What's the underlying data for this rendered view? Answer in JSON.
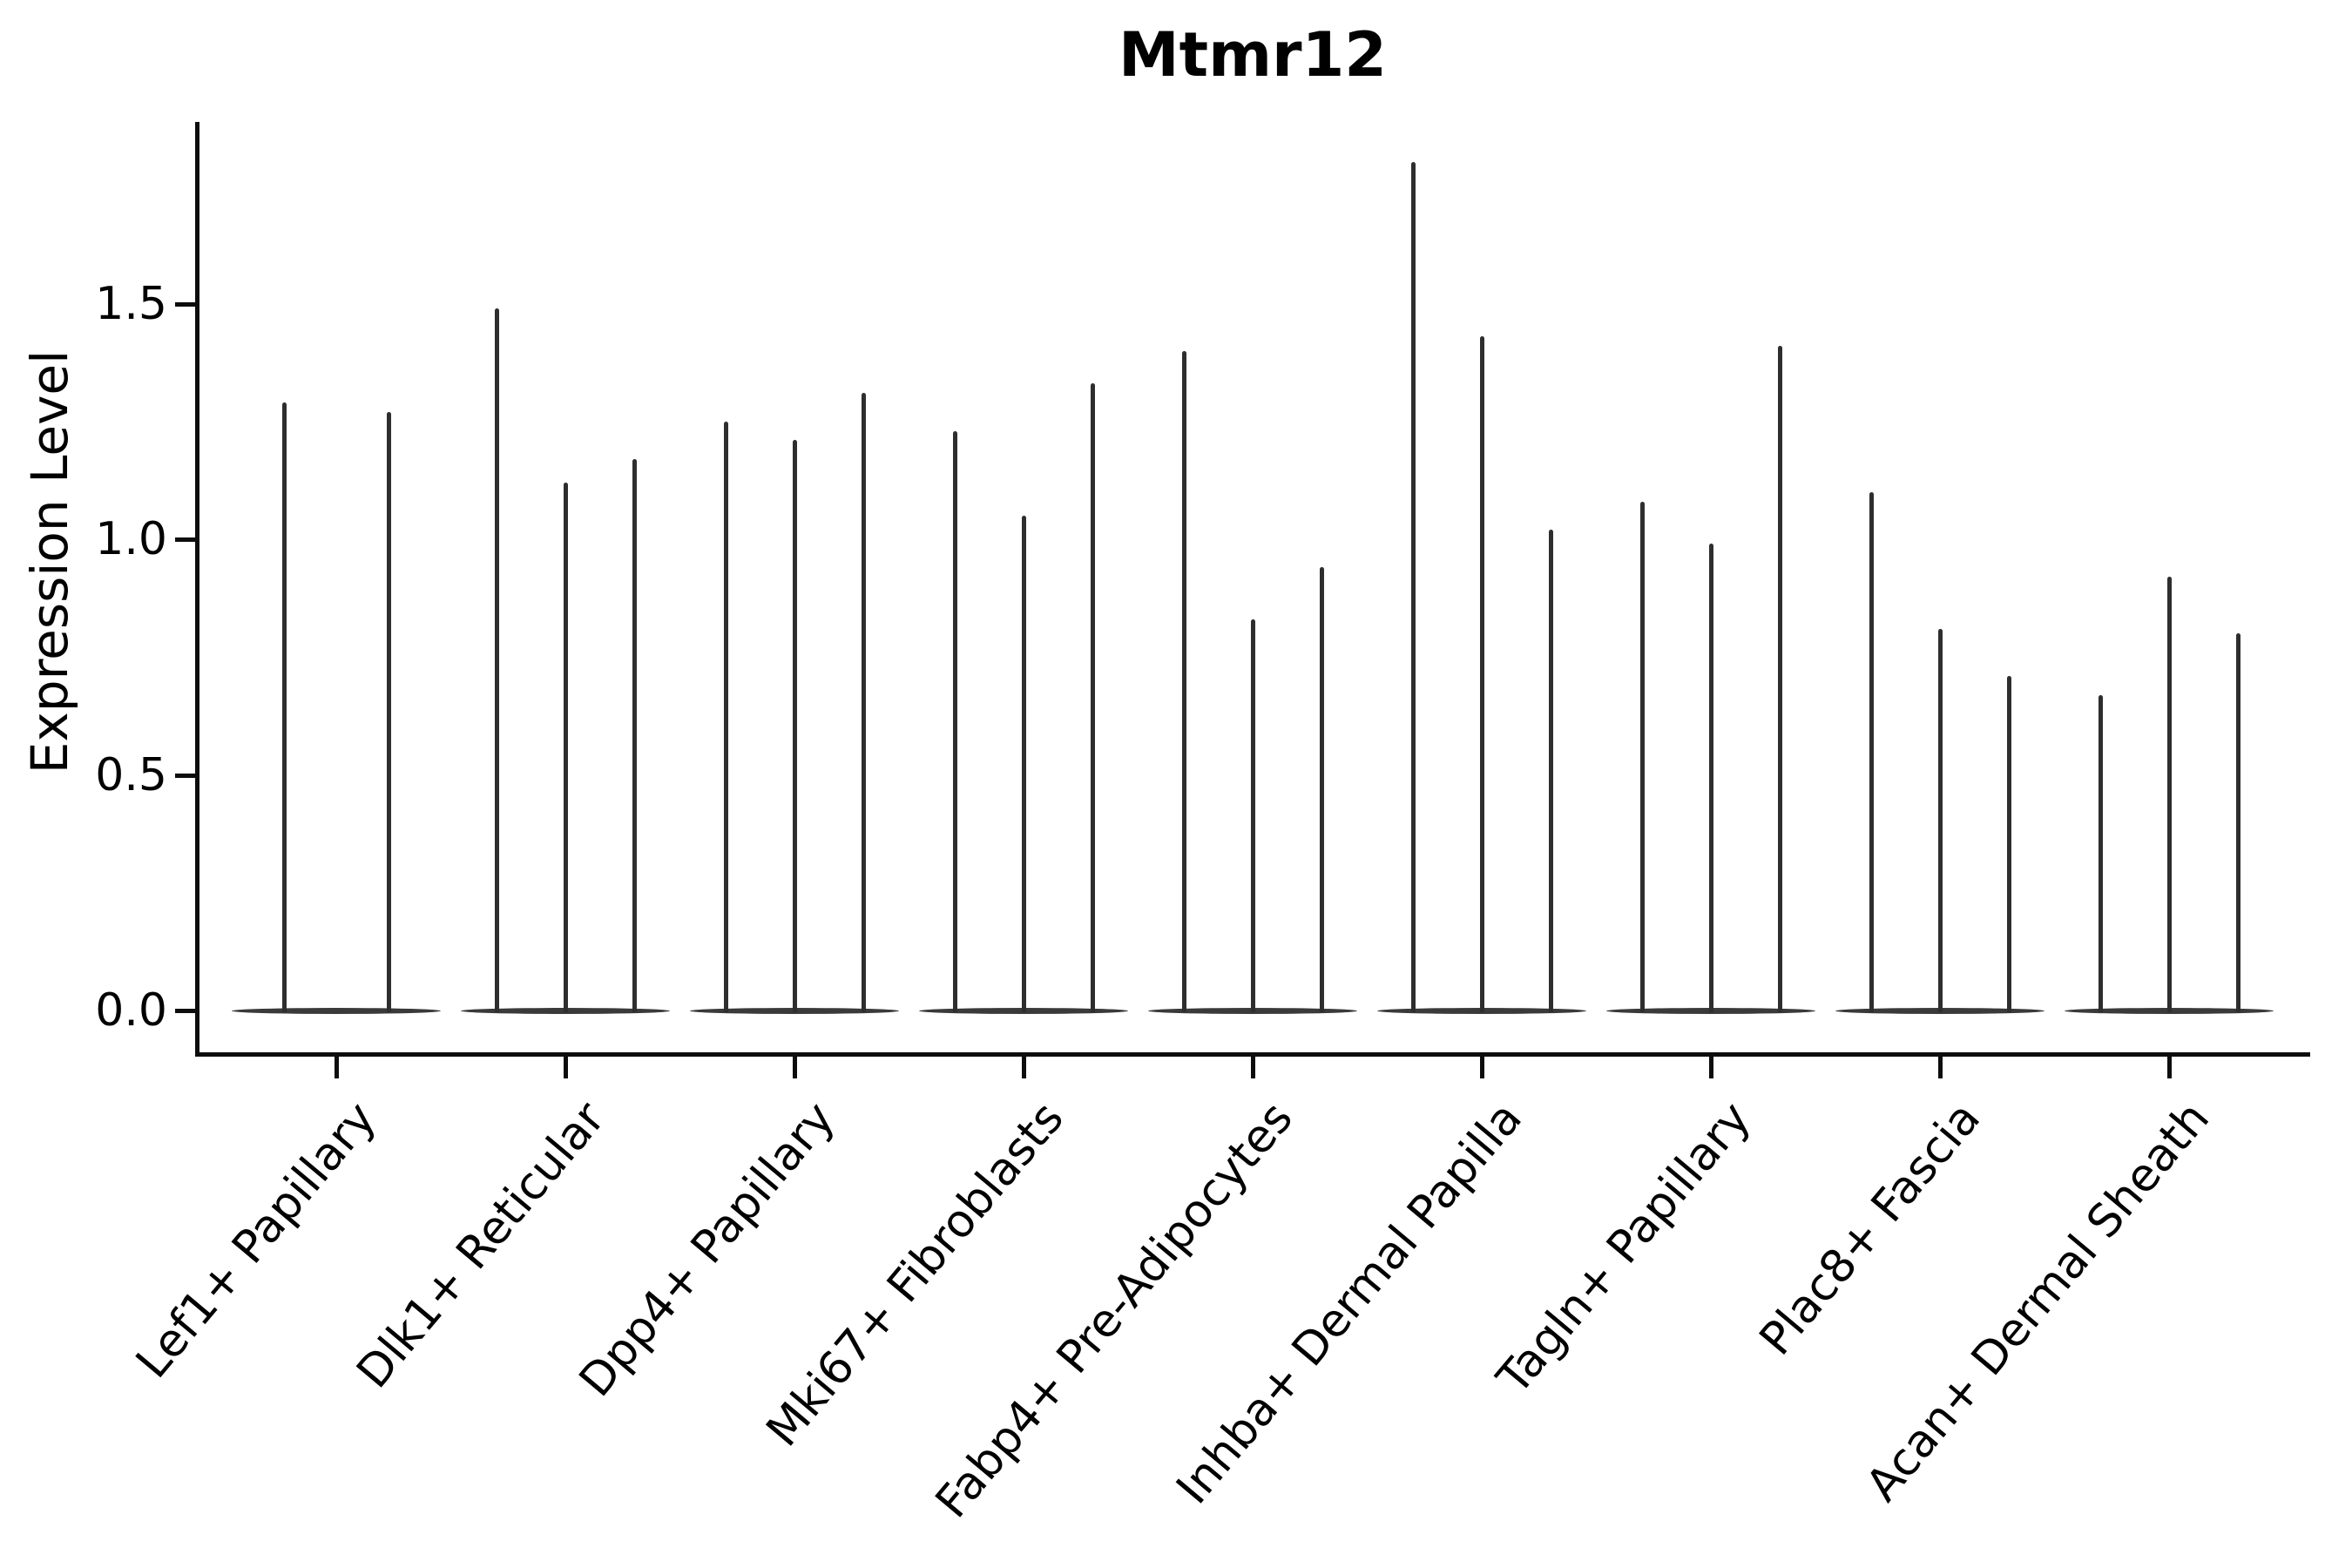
{
  "figure": {
    "title": "Mtmr12",
    "y_axis": {
      "label": "Expression Level",
      "ticks": [
        {
          "label": "0.0",
          "value": 0.0
        },
        {
          "label": "0.5",
          "value": 0.5
        },
        {
          "label": "1.0",
          "value": 1.0
        },
        {
          "label": "1.5",
          "value": 1.5
        }
      ]
    }
  },
  "chart_data": {
    "type": "violin",
    "title": "Mtmr12",
    "xlabel": "",
    "ylabel": "Expression Level",
    "ylim": [
      -0.09,
      1.89
    ],
    "yticks": [
      0.0,
      0.5,
      1.0,
      1.5
    ],
    "grid": false,
    "legend_position": "none",
    "style_note": "Seurat-style violin plot; violins are hairline-thin vertical spikes rising from a flat density lens at expression 0; color near-black on white",
    "categories": [
      "Lef1+ Papillary",
      "Dlk1+ Reticular",
      "Dpp4+ Papillary",
      "Mki67+ Fibroblasts",
      "Fabp4+ Pre-Adipocytes",
      "Inhba+ Dermal Papilla",
      "Tagln+ Papillary",
      "Plac8+ Fascia",
      "Acan+ Dermal Sheath"
    ],
    "series": [
      {
        "category": "Lef1+ Papillary",
        "violin_max_values": [
          1.29,
          1.27
        ]
      },
      {
        "category": "Dlk1+ Reticular",
        "violin_max_values": [
          1.49,
          1.12,
          1.17
        ]
      },
      {
        "category": "Dpp4+ Papillary",
        "violin_max_values": [
          1.25,
          1.21,
          1.31
        ]
      },
      {
        "category": "Mki67+ Fibroblasts",
        "violin_max_values": [
          1.23,
          1.05,
          1.33
        ]
      },
      {
        "category": "Fabp4+ Pre-Adipocytes",
        "violin_max_values": [
          1.4,
          0.83,
          0.94
        ]
      },
      {
        "category": "Inhba+ Dermal Papilla",
        "violin_max_values": [
          1.8,
          1.43,
          1.02
        ]
      },
      {
        "category": "Tagln+ Papillary",
        "violin_max_values": [
          1.08,
          0.99,
          1.41
        ]
      },
      {
        "category": "Plac8+ Fascia",
        "violin_max_values": [
          1.1,
          0.81,
          0.71
        ]
      },
      {
        "category": "Acan+ Dermal Sheath",
        "violin_max_values": [
          0.67,
          0.92,
          0.8
        ]
      }
    ],
    "baseline_value": 0.0,
    "colors": {
      "spike": "#2e2e2e",
      "baseline_lens": "#3a3a3a",
      "axis": "#0d0d0d",
      "text": "#000000"
    }
  }
}
